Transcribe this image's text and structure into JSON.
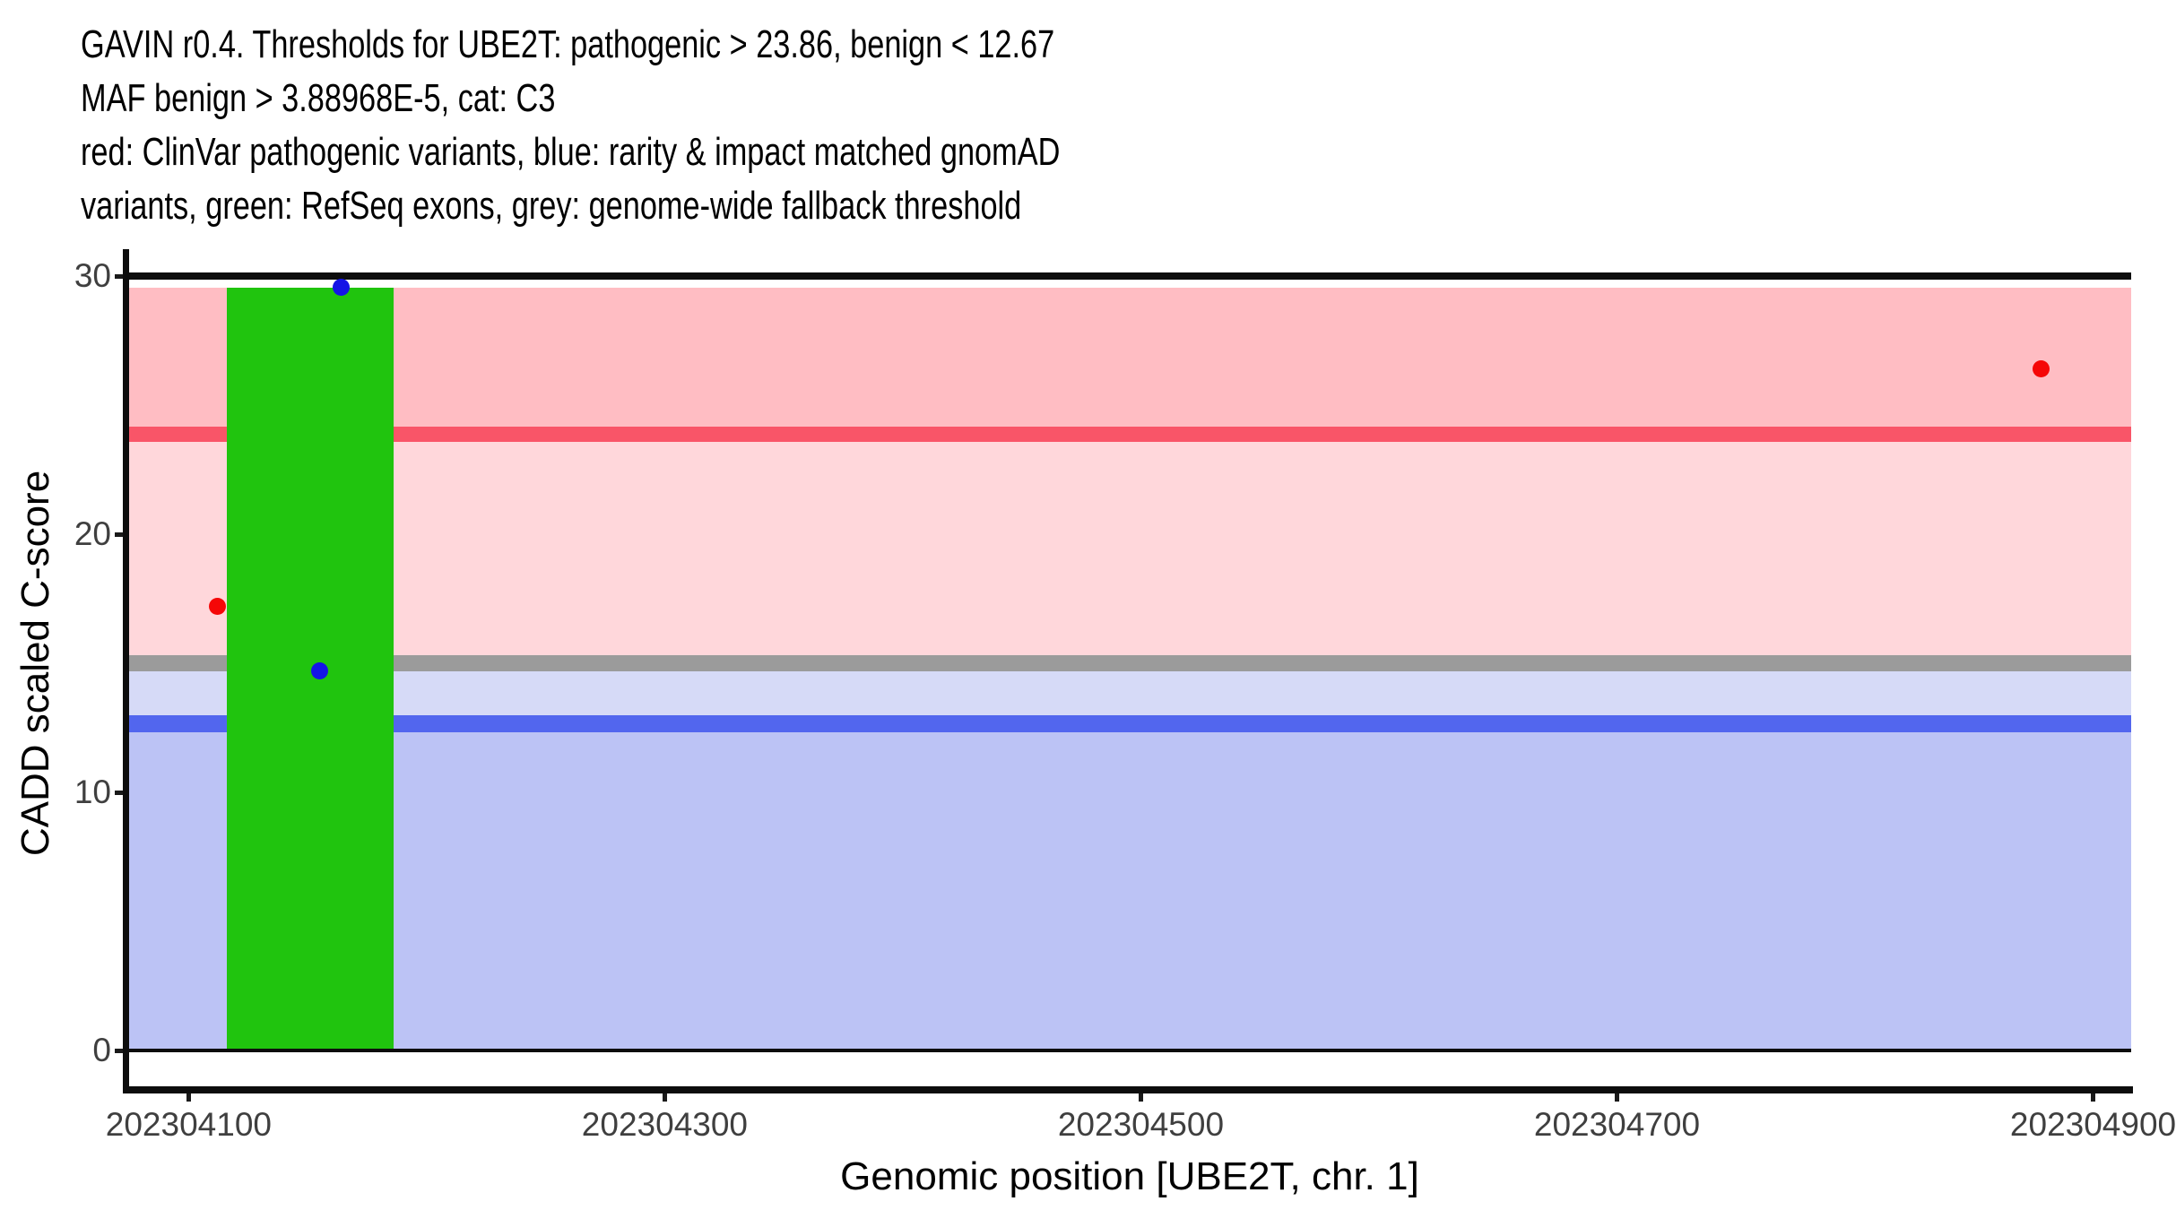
{
  "figure": {
    "title_lines": [
      "GAVIN r0.4. Thresholds for UBE2T: pathogenic > 23.86, benign < 12.67",
      "MAF benign > 3.88968E-5, cat: C3",
      "red: ClinVar pathogenic variants, blue: rarity & impact matched gnomAD",
      "variants, green: RefSeq exons, grey: genome-wide fallback threshold"
    ]
  },
  "chart_data": {
    "type": "scatter",
    "title": "GAVIN r0.4. Thresholds for UBE2T: pathogenic > 23.86, benign < 12.67 MAF benign > 3.88968E-5, cat: C3",
    "subtitle": "red: ClinVar pathogenic variants, blue: rarity & impact matched gnomAD variants, green: RefSeq exons, grey: genome-wide fallback threshold",
    "xlabel": "Genomic position [UBE2T, chr. 1]",
    "ylabel": "CADD scaled C-score",
    "gene": "UBE2T",
    "chromosome": "1",
    "gavin_version": "r0.4",
    "category": "C3",
    "thresholds": {
      "pathogenic_cadd": 23.86,
      "benign_cadd": 12.67,
      "genome_wide_fallback_cadd": 15,
      "maf_benign": "3.88968E-5"
    },
    "x_domain": [
      202304075,
      202304916
    ],
    "y_domain": [
      0,
      30
    ],
    "x_ticks": [
      {
        "value": 202304100,
        "label": "202304100"
      },
      {
        "value": 202304300,
        "label": "202304300"
      },
      {
        "value": 202304500,
        "label": "202304500"
      },
      {
        "value": 202304700,
        "label": "202304700"
      },
      {
        "value": 202304900,
        "label": "202304900"
      }
    ],
    "y_ticks": [
      {
        "value": 0,
        "label": "0"
      },
      {
        "value": 10,
        "label": "10"
      },
      {
        "value": 20,
        "label": "20"
      },
      {
        "value": 30,
        "label": "30"
      }
    ],
    "bands": [
      {
        "name": "pathogenic-region",
        "ymin": 24.15,
        "ymax": 29.56,
        "color": "#FFBDC3"
      },
      {
        "name": "pathogenic-threshold-line-23.86",
        "ymin": 23.57,
        "ymax": 24.15,
        "color": "#F95568"
      },
      {
        "name": "vous-region-above-fallback",
        "ymin": 15.31,
        "ymax": 23.57,
        "color": "#FFD7DB"
      },
      {
        "name": "genome-wide-fallback-threshold-line-15",
        "ymin": 14.69,
        "ymax": 15.31,
        "color": "#9B9B9B"
      },
      {
        "name": "vous-region-below-fallback",
        "ymin": 12.98,
        "ymax": 14.69,
        "color": "#D6DAF7"
      },
      {
        "name": "benign-threshold-line-12.67",
        "ymin": 12.34,
        "ymax": 12.98,
        "color": "#5266EE"
      },
      {
        "name": "benign-region",
        "ymin": 0,
        "ymax": 12.34,
        "color": "#BCC3F5"
      }
    ],
    "hlines": [
      {
        "y": 30,
        "color": "#0D0D0D",
        "thickness_px": 8
      },
      {
        "y": 0,
        "color": "#0D0D0D",
        "thickness_px": 4
      }
    ],
    "exons": [
      {
        "name": "refseq-exon",
        "start": 202304116,
        "end": 202304186,
        "ymin": 0,
        "ymax": 29.56,
        "color": "#20C40E"
      }
    ],
    "points": [
      {
        "x": 202304112,
        "y": 17.2,
        "series": "ClinVar pathogenic variant",
        "color": "#F50707"
      },
      {
        "x": 202304164,
        "y": 29.55,
        "series": "rarity & impact matched gnomAD variant",
        "color": "#1414E6"
      },
      {
        "x": 202304155,
        "y": 14.7,
        "series": "rarity & impact matched gnomAD variant",
        "color": "#1414E6"
      },
      {
        "x": 202304878,
        "y": 26.4,
        "series": "ClinVar pathogenic variant",
        "color": "#F50707"
      }
    ],
    "point_radius_px": 9.5,
    "grid": false,
    "legend_position": "none"
  }
}
